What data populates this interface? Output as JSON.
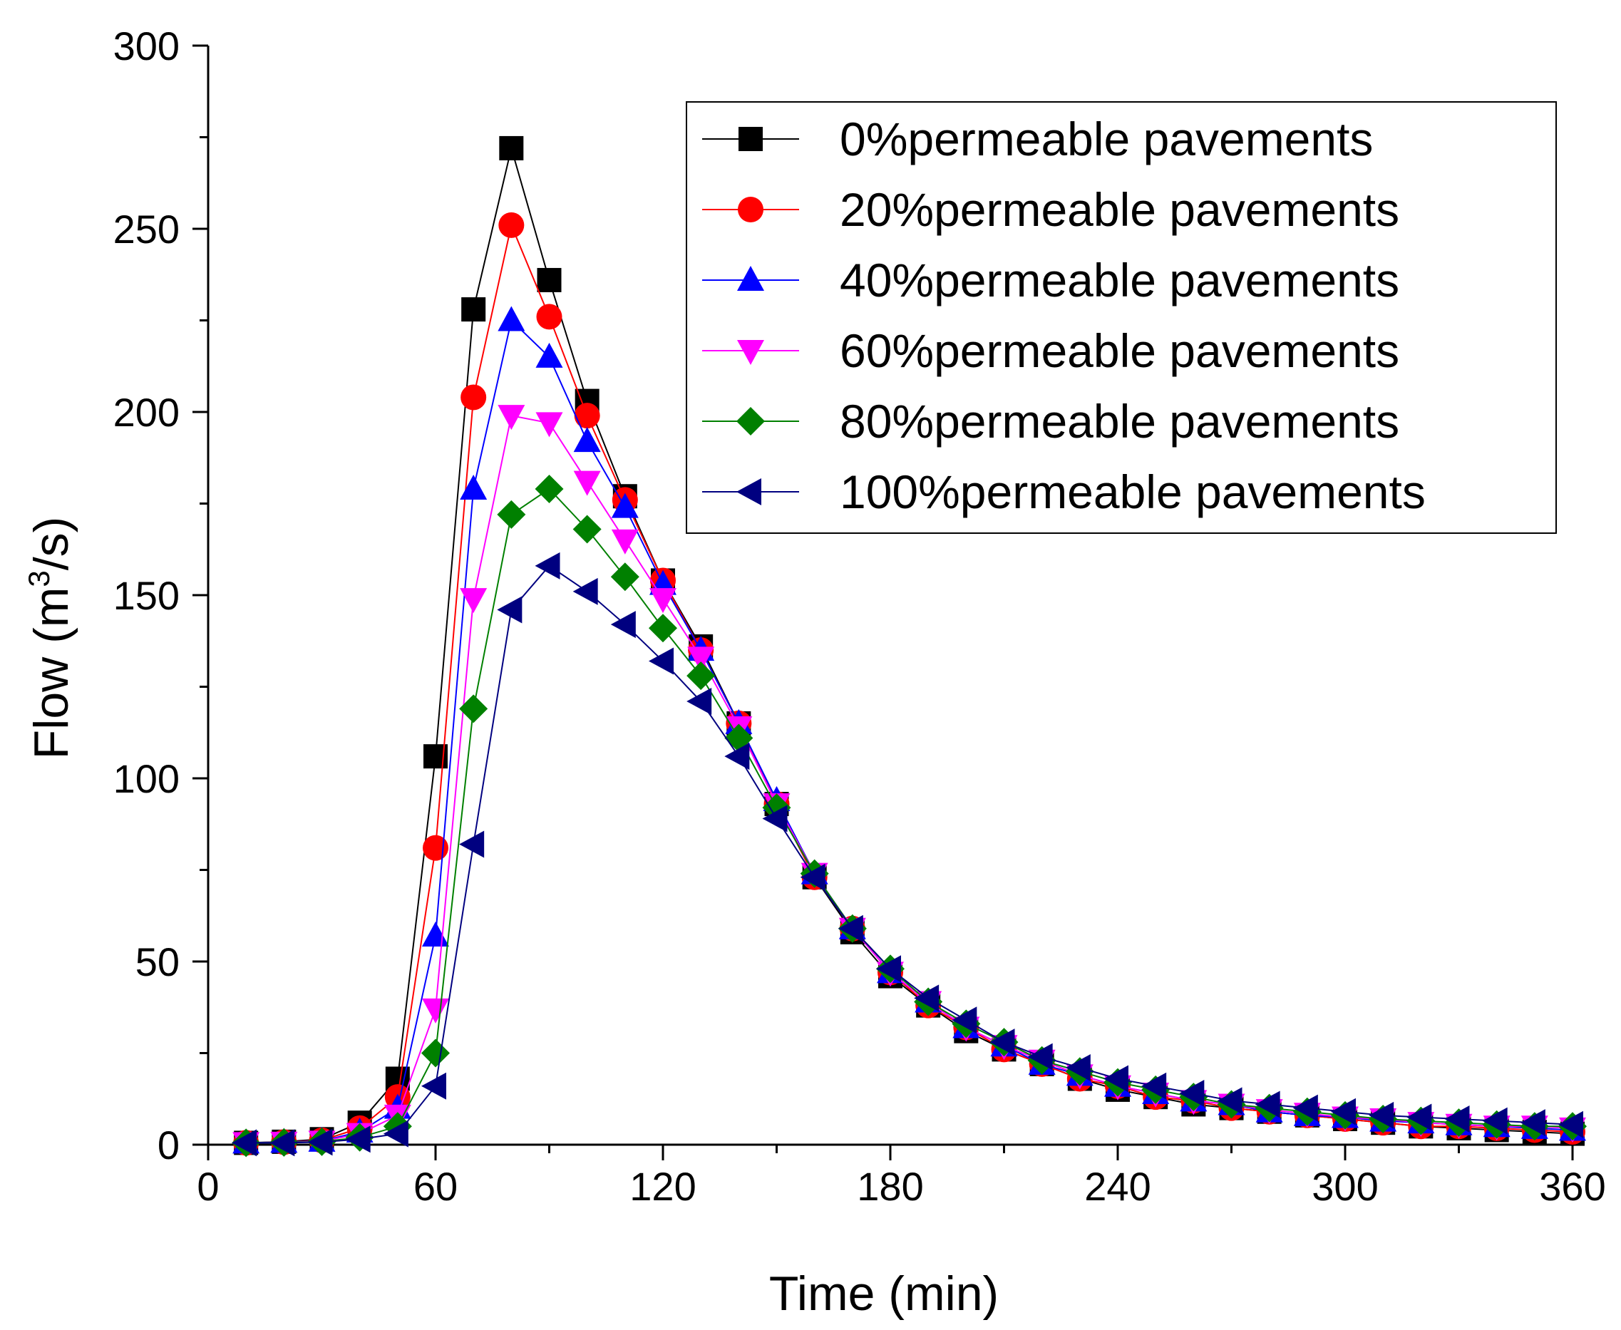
{
  "chart_data": {
    "type": "line",
    "title": "",
    "xlabel": "Time (min)",
    "ylabel_prefix": "Flow (m",
    "ylabel_sup": "3",
    "ylabel_suffix": "/s)",
    "xlim": [
      0,
      360
    ],
    "ylim": [
      0,
      300
    ],
    "xticks": [
      0,
      60,
      120,
      180,
      240,
      300,
      360
    ],
    "yticks": [
      0,
      50,
      100,
      150,
      200,
      250,
      300
    ],
    "grid": false,
    "legend_position": "top-right",
    "x": [
      10,
      20,
      30,
      40,
      50,
      60,
      70,
      80,
      90,
      100,
      110,
      120,
      130,
      140,
      150,
      160,
      170,
      180,
      190,
      200,
      210,
      220,
      230,
      240,
      250,
      260,
      270,
      280,
      290,
      300,
      310,
      320,
      330,
      340,
      350,
      360
    ],
    "series": [
      {
        "name": "0%permeable pavements",
        "color": "#000000",
        "marker": "square",
        "values": [
          0.5,
          0.8,
          1.5,
          6,
          18,
          106,
          228,
          272,
          236,
          203,
          177,
          154,
          136,
          115,
          93,
          73,
          58,
          46,
          38,
          31,
          26,
          22,
          18,
          15,
          13,
          11,
          10,
          9,
          8,
          7,
          6,
          5,
          4.5,
          4,
          3.5,
          3
        ]
      },
      {
        "name": "20%permeable pavements",
        "color": "#ff0000",
        "marker": "circle",
        "values": [
          0.5,
          0.7,
          1.2,
          4.5,
          13,
          81,
          204,
          251,
          226,
          199,
          176,
          154,
          135,
          115,
          93,
          73,
          59,
          47,
          38,
          32,
          26,
          22,
          18,
          16,
          13,
          12,
          10,
          9,
          8,
          7,
          6,
          5,
          5,
          4.5,
          4,
          3.5
        ]
      },
      {
        "name": "40%permeable pavements",
        "color": "#0000ff",
        "marker": "triangle-up",
        "values": [
          0.5,
          0.7,
          1,
          3.5,
          10,
          57,
          179,
          225,
          215,
          192,
          174,
          153,
          135,
          115,
          94,
          74,
          59,
          47,
          39,
          32,
          27,
          22,
          19,
          16,
          14,
          12,
          11,
          9,
          8,
          7.5,
          6.5,
          6,
          5.5,
          5,
          4.5,
          4
        ]
      },
      {
        "name": "60%permeable pavements",
        "color": "#ff00ff",
        "marker": "triangle-down",
        "values": [
          0.5,
          0.6,
          0.9,
          3,
          8,
          37,
          149,
          199,
          197,
          181,
          165,
          149,
          133,
          114,
          93,
          74,
          59,
          47,
          39,
          32,
          27,
          23,
          19,
          16,
          14,
          12,
          11,
          9.5,
          8.5,
          7.5,
          7,
          6,
          5.5,
          5,
          5,
          4.5
        ]
      },
      {
        "name": "80%permeable pavements",
        "color": "#008000",
        "marker": "diamond",
        "values": [
          0.5,
          0.6,
          0.8,
          2,
          5,
          25,
          119,
          172,
          179,
          168,
          155,
          141,
          128,
          111,
          92,
          74,
          59,
          48,
          39,
          33,
          28,
          23,
          20,
          17,
          15,
          13,
          11,
          10,
          9,
          8,
          7,
          6.5,
          6,
          5.5,
          5,
          5
        ]
      },
      {
        "name": "100%permeable pavements",
        "color": "#000080",
        "marker": "triangle-left",
        "values": [
          0.5,
          0.5,
          0.7,
          1.5,
          3,
          16,
          82,
          146,
          158,
          151,
          142,
          132,
          121,
          106,
          89,
          73,
          59,
          48,
          40,
          34,
          28,
          24,
          21,
          18,
          16,
          14,
          12,
          11,
          10,
          9,
          8,
          7.5,
          7,
          6.5,
          6,
          5.5
        ]
      }
    ]
  }
}
